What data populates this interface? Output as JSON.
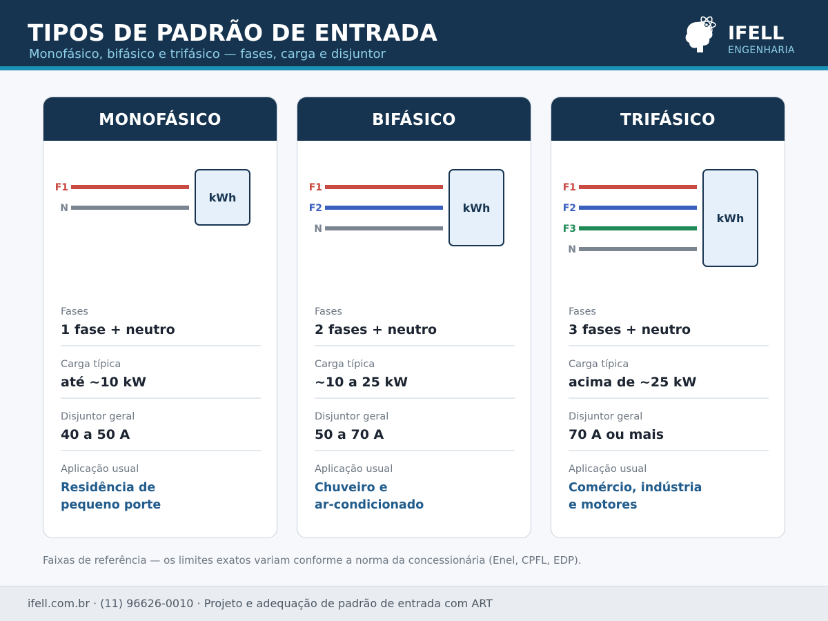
{
  "header": {
    "title": "TIPOS DE PADRÃO DE ENTRADA",
    "subtitle": "Monofásico, bifásico e trifásico — fases, carga e disjuntor"
  },
  "logo": {
    "icon": "brain-atom-logo-icon",
    "name": "IFELL",
    "sub": "ENGENHARIA"
  },
  "colors": {
    "header_bg": "#16344f",
    "accent": "#1b91b5",
    "phase_f1": "#c94a42",
    "phase_f2": "#3b5fbf",
    "phase_f3": "#1e8a55",
    "neutral": "#7b8591",
    "app_text": "#215c8c"
  },
  "cards": [
    {
      "title": "MONOFÁSICO",
      "meter": "kWh",
      "wires": [
        {
          "label": "F1",
          "color": "#c94a42"
        },
        {
          "label": "N",
          "color": "#7b8591"
        }
      ],
      "specs": [
        {
          "label": "Fases",
          "value": "1 fase + neutro"
        },
        {
          "label": "Carga típica",
          "value": "até ~10 kW"
        },
        {
          "label": "Disjuntor geral",
          "value": "40 a 50 A"
        }
      ],
      "app_label": "Aplicação usual",
      "app_lines": [
        "Residência de",
        "pequeno porte"
      ]
    },
    {
      "title": "BIFÁSICO",
      "meter": "kWh",
      "wires": [
        {
          "label": "F1",
          "color": "#c94a42"
        },
        {
          "label": "F2",
          "color": "#3b5fbf"
        },
        {
          "label": "N",
          "color": "#7b8591"
        }
      ],
      "specs": [
        {
          "label": "Fases",
          "value": "2 fases + neutro"
        },
        {
          "label": "Carga típica",
          "value": "~10 a 25 kW"
        },
        {
          "label": "Disjuntor geral",
          "value": "50 a 70 A"
        }
      ],
      "app_label": "Aplicação usual",
      "app_lines": [
        "Chuveiro e",
        "ar-condicionado"
      ]
    },
    {
      "title": "TRIFÁSICO",
      "meter": "kWh",
      "wires": [
        {
          "label": "F1",
          "color": "#c94a42"
        },
        {
          "label": "F2",
          "color": "#3b5fbf"
        },
        {
          "label": "F3",
          "color": "#1e8a55"
        },
        {
          "label": "N",
          "color": "#7b8591"
        }
      ],
      "specs": [
        {
          "label": "Fases",
          "value": "3 fases + neutro"
        },
        {
          "label": "Carga típica",
          "value": "acima de ~25 kW"
        },
        {
          "label": "Disjuntor geral",
          "value": "70 A ou mais"
        }
      ],
      "app_label": "Aplicação usual",
      "app_lines": [
        "Comércio, indústria",
        "e motores"
      ]
    }
  ],
  "footnote": "Faixas de referência — os limites exatos variam conforme a norma da concessionária (Enel, CPFL, EDP).",
  "footer": "ifell.com.br  ·  (11) 96626-0010  ·  Projeto e adequação de padrão de entrada com ART"
}
